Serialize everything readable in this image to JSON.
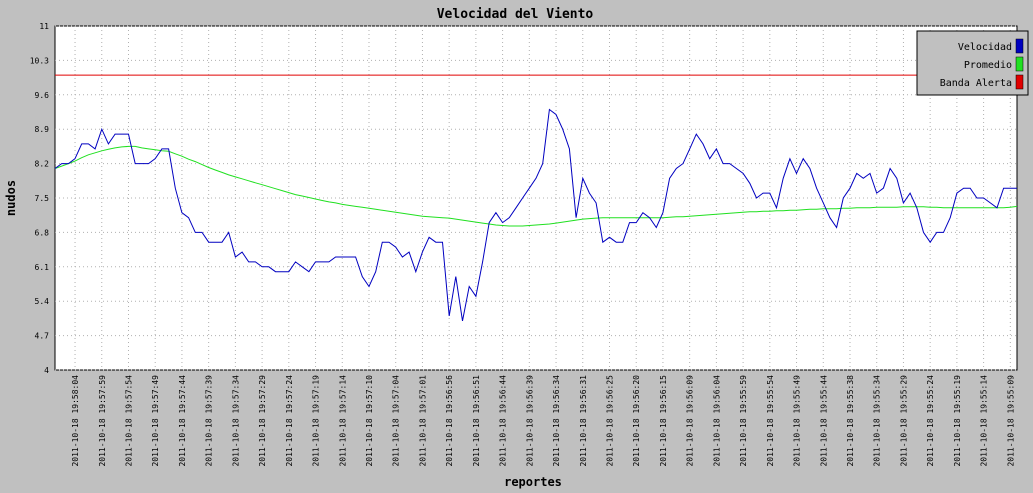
{
  "chart_data": {
    "type": "line",
    "title": "Velocidad del Viento",
    "xlabel": "reportes",
    "ylabel": "nudos",
    "categories": [
      null,
      null,
      null,
      "2011-10-18 19:58:04",
      null,
      null,
      null,
      "2011-10-18 19:57:59",
      null,
      null,
      null,
      "2011-10-18 19:57:54",
      null,
      null,
      null,
      "2011-10-18 19:57:49",
      null,
      null,
      null,
      "2011-10-18 19:57:44",
      null,
      null,
      null,
      "2011-10-18 19:57:39",
      null,
      null,
      null,
      "2011-10-18 19:57:34",
      null,
      null,
      null,
      "2011-10-18 19:57:29",
      null,
      null,
      null,
      "2011-10-18 19:57:24",
      null,
      null,
      null,
      "2011-10-18 19:57:19",
      null,
      null,
      null,
      "2011-10-18 19:57:14",
      null,
      null,
      null,
      "2011-10-18 19:57:10",
      null,
      null,
      null,
      "2011-10-18 19:57:04",
      null,
      null,
      null,
      "2011-10-18 19:57:01",
      null,
      null,
      null,
      "2011-10-18 19:56:56",
      null,
      null,
      null,
      "2011-10-18 19:56:51",
      null,
      null,
      null,
      "2011-10-18 19:56:44",
      null,
      null,
      null,
      "2011-10-18 19:56:39",
      null,
      null,
      null,
      "2011-10-18 19:56:34",
      null,
      null,
      null,
      "2011-10-18 19:56:31",
      null,
      null,
      null,
      "2011-10-18 19:56:25",
      null,
      null,
      null,
      "2011-10-18 19:56:20",
      null,
      null,
      null,
      "2011-10-18 19:56:15",
      null,
      null,
      null,
      "2011-10-18 19:56:09",
      null,
      null,
      null,
      "2011-10-18 19:56:04",
      null,
      null,
      null,
      "2011-10-18 19:55:59",
      null,
      null,
      null,
      "2011-10-18 19:55:54",
      null,
      null,
      null,
      "2011-10-18 19:55:49",
      null,
      null,
      null,
      "2011-10-18 19:55:44",
      null,
      null,
      null,
      "2011-10-18 19:55:38",
      null,
      null,
      null,
      "2011-10-18 19:55:34",
      null,
      null,
      null,
      "2011-10-18 19:55:29",
      null,
      null,
      null,
      "2011-10-18 19:55:24",
      null,
      null,
      null,
      "2011-10-18 19:55:19",
      null,
      null,
      null,
      "2011-10-18 19:55:14",
      null,
      null,
      null,
      "2011-10-18 19:55:09",
      null
    ],
    "series": [
      {
        "name": "Velocidad",
        "color": "#0000c0",
        "values": [
          8.1,
          8.2,
          8.2,
          8.3,
          8.6,
          8.6,
          8.5,
          8.9,
          8.6,
          8.8,
          8.8,
          8.8,
          8.2,
          8.2,
          8.2,
          8.3,
          8.5,
          8.5,
          7.7,
          7.2,
          7.1,
          6.8,
          6.8,
          6.6,
          6.6,
          6.6,
          6.8,
          6.3,
          6.4,
          6.2,
          6.2,
          6.1,
          6.1,
          6.0,
          6.0,
          6.0,
          6.2,
          6.1,
          6.0,
          6.2,
          6.2,
          6.2,
          6.3,
          6.3,
          6.3,
          6.3,
          5.9,
          5.7,
          6.0,
          6.6,
          6.6,
          6.5,
          6.3,
          6.4,
          6.0,
          6.4,
          6.7,
          6.6,
          6.6,
          5.1,
          5.9,
          5.0,
          5.7,
          5.5,
          6.2,
          7.0,
          7.2,
          7.0,
          7.1,
          7.3,
          7.5,
          7.7,
          7.9,
          8.2,
          9.3,
          9.2,
          8.9,
          8.5,
          7.1,
          7.9,
          7.6,
          7.4,
          6.6,
          6.7,
          6.6,
          6.6,
          7.0,
          7.0,
          7.2,
          7.1,
          6.9,
          7.2,
          7.9,
          8.1,
          8.2,
          8.5,
          8.8,
          8.6,
          8.3,
          8.5,
          8.2,
          8.2,
          8.1,
          8.0,
          7.8,
          7.5,
          7.6,
          7.6,
          7.3,
          7.9,
          8.3,
          8.0,
          8.3,
          8.1,
          7.7,
          7.4,
          7.1,
          6.9,
          7.5,
          7.7,
          8.0,
          7.9,
          8.0,
          7.6,
          7.7,
          8.1,
          7.9,
          7.4,
          7.6,
          7.3,
          6.8,
          6.6,
          6.8,
          6.8,
          7.1,
          7.6,
          7.7,
          7.7,
          7.5,
          7.5,
          7.4,
          7.3,
          7.7,
          7.7,
          7.7
        ]
      },
      {
        "name": "Promedio",
        "color": "#20e020",
        "values": [
          8.1,
          8.15,
          8.2,
          8.25,
          8.32,
          8.38,
          8.42,
          8.46,
          8.49,
          8.52,
          8.54,
          8.55,
          8.55,
          8.52,
          8.5,
          8.48,
          8.46,
          8.45,
          8.4,
          8.35,
          8.29,
          8.24,
          8.18,
          8.12,
          8.07,
          8.02,
          7.97,
          7.93,
          7.89,
          7.85,
          7.81,
          7.77,
          7.73,
          7.69,
          7.65,
          7.61,
          7.57,
          7.54,
          7.51,
          7.48,
          7.45,
          7.42,
          7.4,
          7.37,
          7.35,
          7.33,
          7.31,
          7.29,
          7.27,
          7.25,
          7.23,
          7.21,
          7.19,
          7.17,
          7.15,
          7.13,
          7.12,
          7.11,
          7.1,
          7.09,
          7.07,
          7.05,
          7.03,
          7.01,
          6.99,
          6.97,
          6.95,
          6.94,
          6.93,
          6.93,
          6.93,
          6.94,
          6.95,
          6.96,
          6.97,
          6.99,
          7.01,
          7.03,
          7.05,
          7.07,
          7.08,
          7.09,
          7.1,
          7.1,
          7.1,
          7.1,
          7.1,
          7.1,
          7.1,
          7.1,
          7.1,
          7.1,
          7.11,
          7.12,
          7.12,
          7.13,
          7.14,
          7.15,
          7.16,
          7.17,
          7.18,
          7.19,
          7.2,
          7.21,
          7.22,
          7.22,
          7.23,
          7.23,
          7.24,
          7.24,
          7.25,
          7.25,
          7.26,
          7.27,
          7.27,
          7.28,
          7.28,
          7.28,
          7.29,
          7.29,
          7.3,
          7.3,
          7.3,
          7.31,
          7.31,
          7.31,
          7.31,
          7.32,
          7.32,
          7.32,
          7.32,
          7.31,
          7.31,
          7.3,
          7.3,
          7.3,
          7.3,
          7.3,
          7.3,
          7.3,
          7.3,
          7.3,
          7.3,
          7.31,
          7.33
        ]
      },
      {
        "name": "Banda Alerta",
        "color": "#e00000",
        "values": [
          10,
          10,
          10,
          10,
          10,
          10,
          10,
          10,
          10,
          10,
          10,
          10,
          10,
          10,
          10,
          10,
          10,
          10,
          10,
          10,
          10,
          10,
          10,
          10,
          10,
          10,
          10,
          10,
          10,
          10,
          10,
          10,
          10,
          10,
          10,
          10,
          10,
          10,
          10,
          10,
          10,
          10,
          10,
          10,
          10,
          10,
          10,
          10,
          10,
          10,
          10,
          10,
          10,
          10,
          10,
          10,
          10,
          10,
          10,
          10,
          10,
          10,
          10,
          10,
          10,
          10,
          10,
          10,
          10,
          10,
          10,
          10,
          10,
          10,
          10,
          10,
          10,
          10,
          10,
          10,
          10,
          10,
          10,
          10,
          10,
          10,
          10,
          10,
          10,
          10,
          10,
          10,
          10,
          10,
          10,
          10,
          10,
          10,
          10,
          10,
          10,
          10,
          10,
          10,
          10,
          10,
          10,
          10,
          10,
          10,
          10,
          10,
          10,
          10,
          10,
          10,
          10,
          10,
          10,
          10,
          10,
          10,
          10,
          10,
          10,
          10,
          10,
          10,
          10,
          10,
          10,
          10,
          10,
          10,
          10,
          10,
          10,
          10,
          10,
          10,
          10,
          10,
          10,
          10,
          10
        ]
      }
    ],
    "ylim": [
      4,
      11
    ],
    "yticks": [
      4,
      4.7,
      5.4,
      6.1,
      6.8,
      7.5,
      8.2,
      8.9,
      9.6,
      10.3,
      11
    ],
    "grid": true,
    "legend": "upper right"
  }
}
